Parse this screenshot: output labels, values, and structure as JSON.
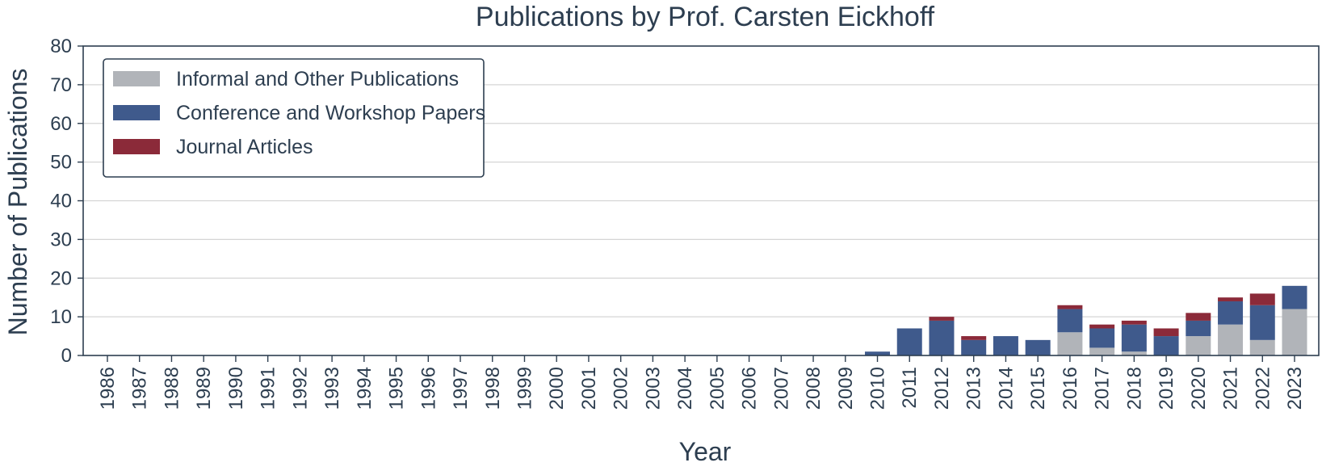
{
  "chart_data": {
    "type": "bar",
    "stacked": true,
    "title": "Publications by Prof. Carsten Eickhoff",
    "xlabel": "Year",
    "ylabel": "Number of Publications",
    "ylim": [
      0,
      80
    ],
    "yticks": [
      0,
      10,
      20,
      30,
      40,
      50,
      60,
      70,
      80
    ],
    "grid": "horizontal",
    "legend_position": "top-left",
    "categories": [
      "1986",
      "1987",
      "1988",
      "1989",
      "1990",
      "1991",
      "1992",
      "1993",
      "1994",
      "1995",
      "1996",
      "1997",
      "1998",
      "1999",
      "2000",
      "2001",
      "2002",
      "2003",
      "2004",
      "2005",
      "2006",
      "2007",
      "2008",
      "2009",
      "2010",
      "2011",
      "2012",
      "2013",
      "2014",
      "2015",
      "2016",
      "2017",
      "2018",
      "2019",
      "2020",
      "2021",
      "2022",
      "2023"
    ],
    "series": [
      {
        "name": "Informal and Other Publications",
        "color": "#b1b4b9",
        "values": [
          0,
          0,
          0,
          0,
          0,
          0,
          0,
          0,
          0,
          0,
          0,
          0,
          0,
          0,
          0,
          0,
          0,
          0,
          0,
          0,
          0,
          0,
          0,
          0,
          0,
          0,
          0,
          0,
          0,
          0,
          6,
          2,
          1,
          0,
          5,
          8,
          4,
          12
        ]
      },
      {
        "name": "Conference and Workshop Papers",
        "color": "#3f5a8c",
        "values": [
          0,
          0,
          0,
          0,
          0,
          0,
          0,
          0,
          0,
          0,
          0,
          0,
          0,
          0,
          0,
          0,
          0,
          0,
          0,
          0,
          0,
          0,
          0,
          0,
          1,
          7,
          9,
          4,
          5,
          4,
          6,
          5,
          7,
          5,
          4,
          6,
          9,
          6
        ]
      },
      {
        "name": "Journal Articles",
        "color": "#8b2a39",
        "values": [
          0,
          0,
          0,
          0,
          0,
          0,
          0,
          0,
          0,
          0,
          0,
          0,
          0,
          0,
          0,
          0,
          0,
          0,
          0,
          0,
          0,
          0,
          0,
          0,
          0,
          0,
          1,
          1,
          0,
          0,
          1,
          1,
          1,
          2,
          2,
          1,
          3,
          0
        ]
      }
    ]
  }
}
